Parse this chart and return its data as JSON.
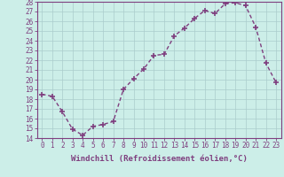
{
  "x": [
    0,
    1,
    2,
    3,
    4,
    5,
    6,
    7,
    8,
    9,
    10,
    11,
    12,
    13,
    14,
    15,
    16,
    17,
    18,
    19,
    20,
    21,
    22,
    23
  ],
  "y": [
    18.5,
    18.3,
    16.7,
    14.9,
    14.3,
    15.2,
    15.4,
    15.7,
    19.0,
    20.1,
    21.1,
    22.5,
    22.6,
    24.5,
    25.3,
    26.3,
    27.1,
    26.8,
    27.8,
    27.9,
    27.6,
    25.4,
    21.7,
    19.7
  ],
  "line_color": "#7f3f7f",
  "marker": "+",
  "marker_size": 4,
  "marker_color": "#7f3f7f",
  "bg_color": "#cceee8",
  "grid_color": "#aacccc",
  "xlabel": "Windchill (Refroidissement éolien,°C)",
  "ylabel": "",
  "ylim": [
    14,
    28
  ],
  "xlim": [
    -0.5,
    23.5
  ],
  "yticks": [
    14,
    15,
    16,
    17,
    18,
    19,
    20,
    21,
    22,
    23,
    24,
    25,
    26,
    27,
    28
  ],
  "xticks": [
    0,
    1,
    2,
    3,
    4,
    5,
    6,
    7,
    8,
    9,
    10,
    11,
    12,
    13,
    14,
    15,
    16,
    17,
    18,
    19,
    20,
    21,
    22,
    23
  ],
  "tick_color": "#7f3f7f",
  "axis_color": "#7f3f7f",
  "label_fontsize": 6.5,
  "tick_fontsize": 5.5,
  "linewidth": 1.0
}
